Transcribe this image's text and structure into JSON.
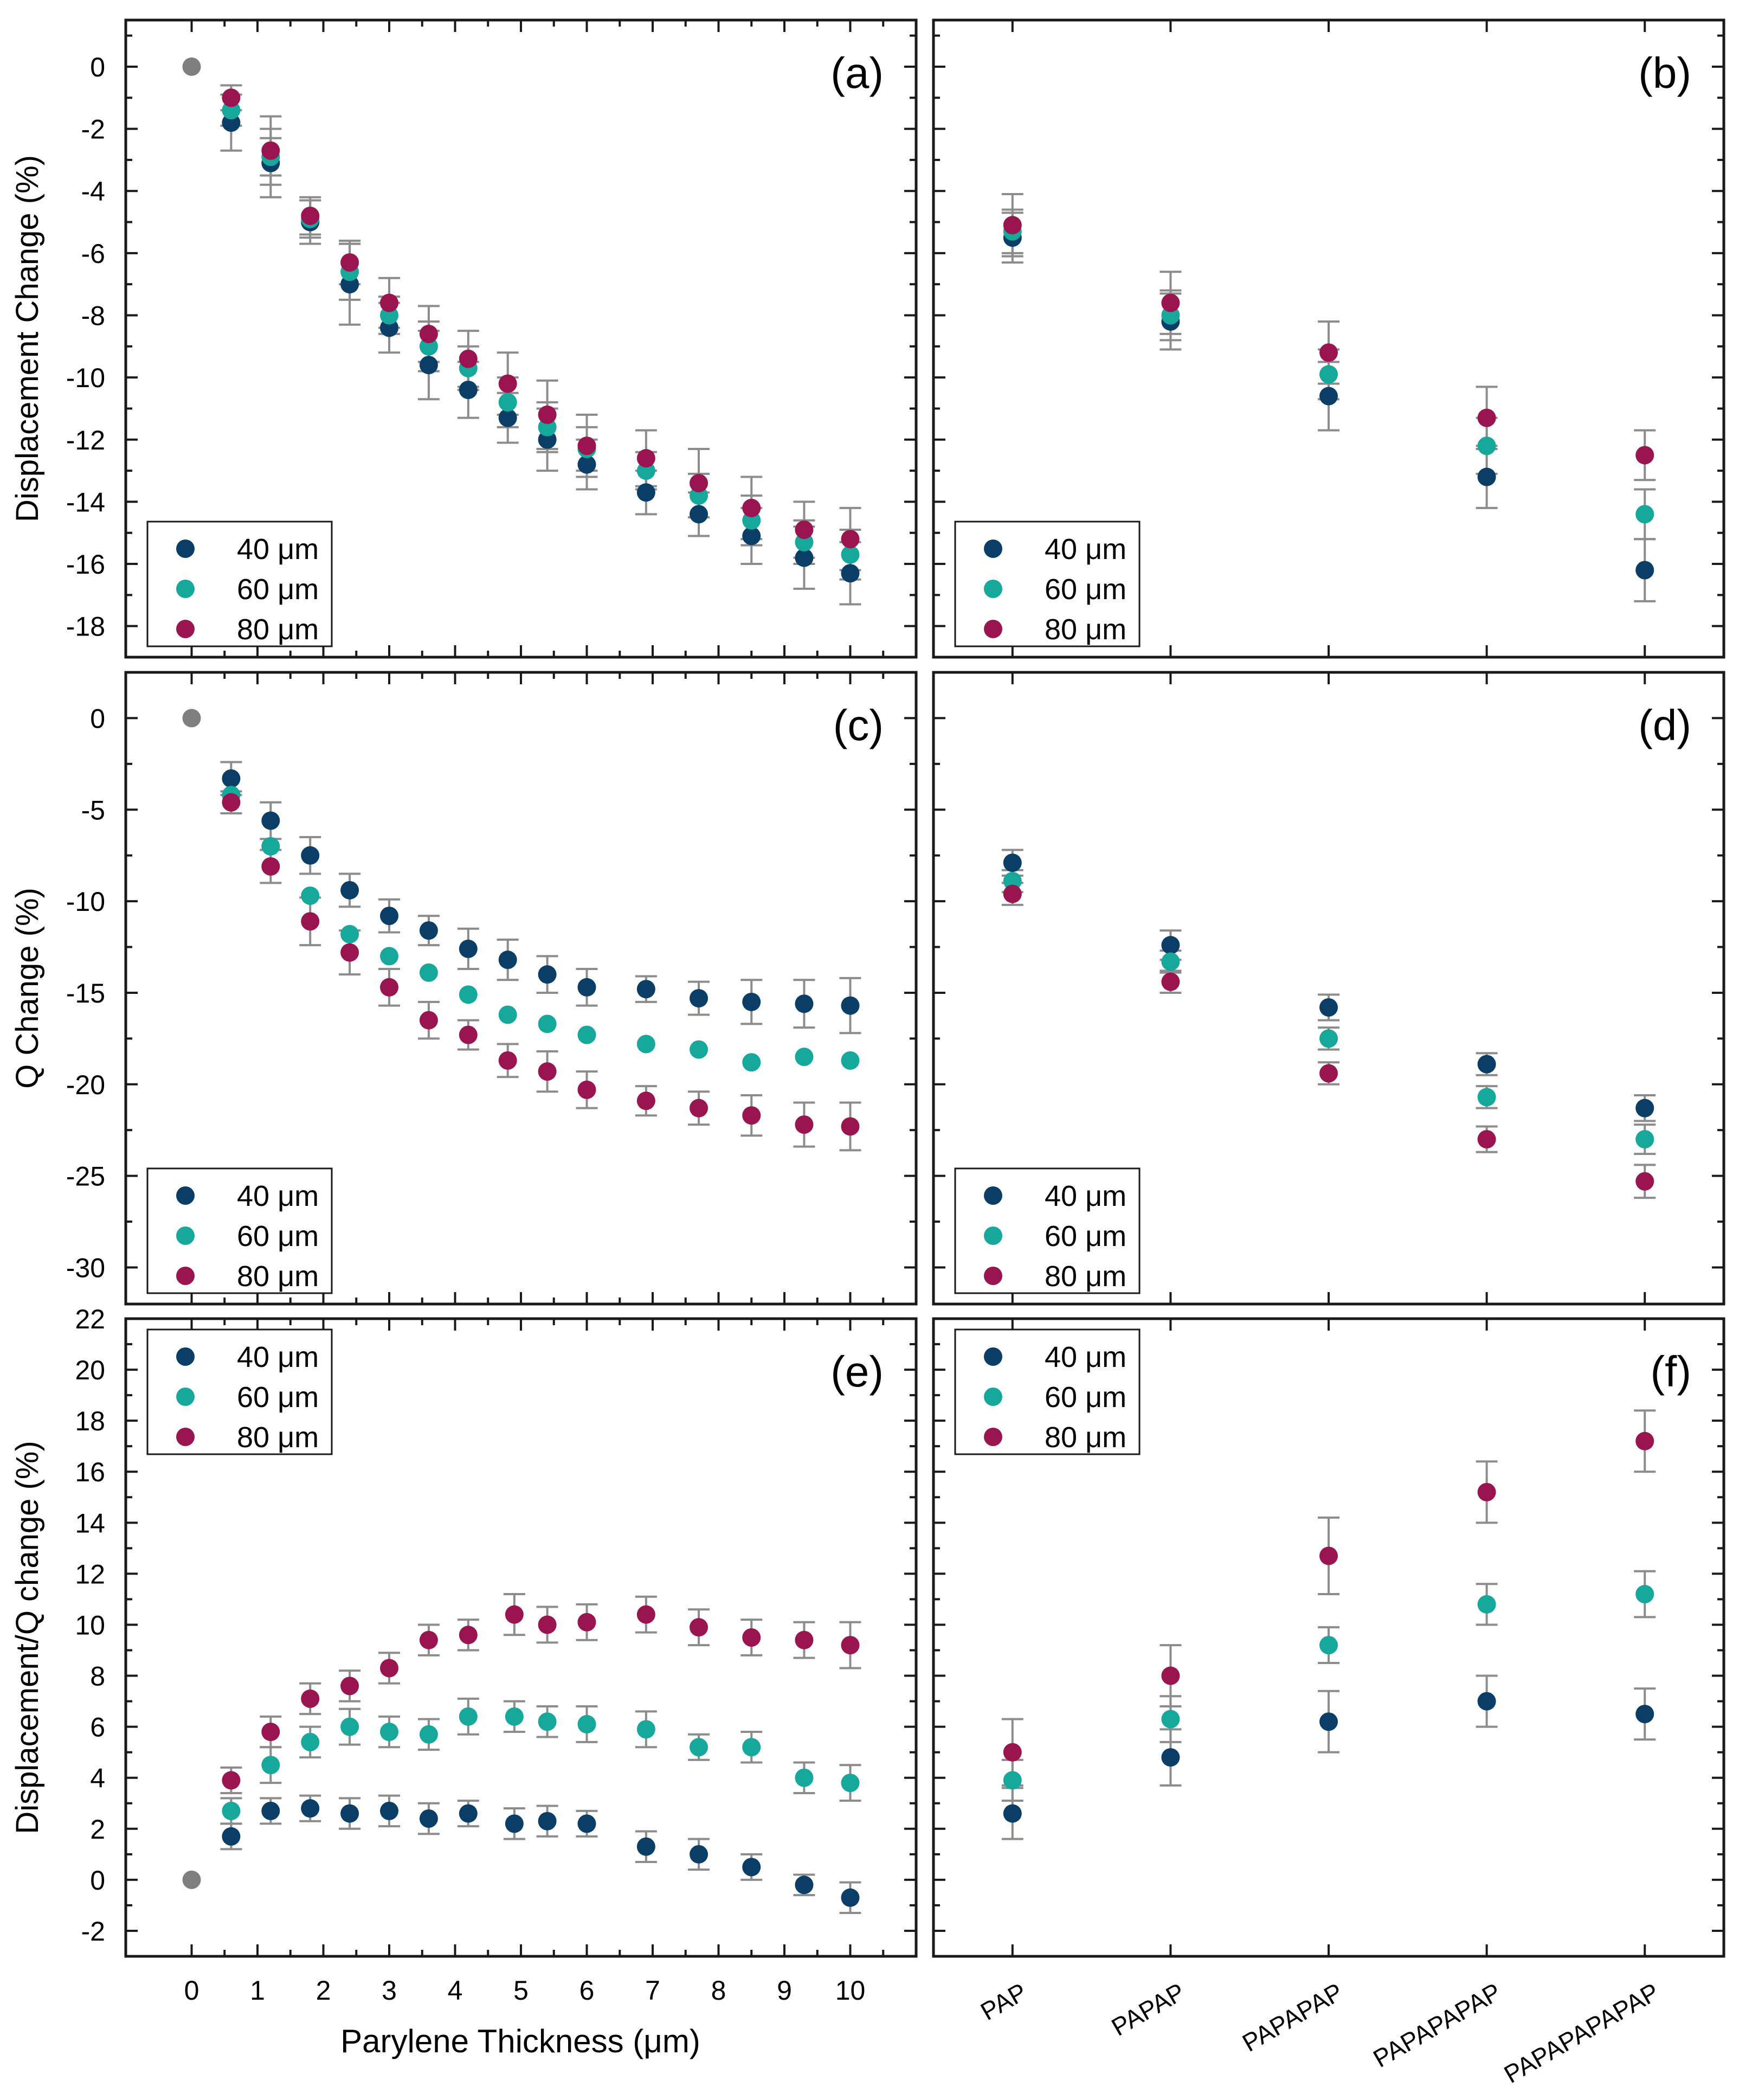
{
  "figure": {
    "shared_xlabel": "Parylene Thickness (μm)",
    "legend_labels": [
      "40 μm",
      "60 μm",
      "80 μm"
    ],
    "colors": {
      "s40": "#0b3e66",
      "s60": "#15a89b",
      "s80": "#9a1450",
      "origin": "#7f7f7f",
      "errorbar": "#8c8c8c"
    }
  },
  "chart_data": [
    {
      "id": "a",
      "panel_label": "(a)",
      "type": "scatter",
      "ylabel": "Displacement Change (%)",
      "xlim": [
        -1,
        11
      ],
      "ylim": [
        -19,
        1.5
      ],
      "xticks": [
        0,
        1,
        2,
        3,
        4,
        5,
        6,
        7,
        8,
        9,
        10
      ],
      "xtick_labels_shown": false,
      "yticks": [
        0,
        -2,
        -4,
        -6,
        -8,
        -10,
        -12,
        -14,
        -16,
        -18
      ],
      "legend_position": "bottom-left",
      "origin": {
        "x": 0,
        "y": 0
      },
      "x": [
        0.6,
        1.2,
        1.8,
        2.4,
        3.0,
        3.6,
        4.2,
        4.8,
        5.4,
        6.0,
        6.9,
        7.7,
        8.5,
        9.3,
        10.0
      ],
      "series": [
        {
          "name": "40 μm",
          "color": "#0b3e66",
          "y": [
            -1.8,
            -3.1,
            -5.0,
            -7.0,
            -8.4,
            -9.6,
            -10.4,
            -11.3,
            -12.0,
            -12.8,
            -13.7,
            -14.4,
            -15.1,
            -15.8,
            -16.3
          ],
          "err": [
            0.9,
            1.1,
            0.7,
            1.3,
            0.8,
            1.1,
            0.9,
            0.8,
            1.0,
            0.8,
            0.7,
            0.7,
            0.9,
            1.0,
            1.0
          ]
        },
        {
          "name": "60 μm",
          "color": "#15a89b",
          "y": [
            -1.4,
            -2.9,
            -4.9,
            -6.6,
            -8.0,
            -9.0,
            -9.7,
            -10.8,
            -11.6,
            -12.3,
            -13.0,
            -13.8,
            -14.6,
            -15.3,
            -15.7
          ],
          "err": [
            0.5,
            0.6,
            0.6,
            0.9,
            0.6,
            0.8,
            0.7,
            0.8,
            0.8,
            0.7,
            0.6,
            0.7,
            0.8,
            0.7,
            0.8
          ]
        },
        {
          "name": "80 μm",
          "color": "#9a1450",
          "y": [
            -1.0,
            -2.7,
            -4.8,
            -6.3,
            -7.6,
            -8.6,
            -9.4,
            -10.2,
            -11.2,
            -12.2,
            -12.6,
            -13.4,
            -14.2,
            -14.9,
            -15.2
          ],
          "err": [
            0.4,
            1.1,
            0.6,
            0.7,
            0.8,
            0.9,
            0.9,
            1.0,
            1.1,
            1.0,
            0.9,
            1.1,
            1.0,
            0.9,
            1.0
          ]
        }
      ]
    },
    {
      "id": "b",
      "panel_label": "(b)",
      "type": "scatter",
      "xlim": [
        -0.5,
        4.5
      ],
      "ylim": [
        -19,
        1.5
      ],
      "categories": [
        "PAP",
        "PAPAP",
        "PAPAPAP",
        "PAPAPAPAP",
        "PAPAPAPAPAP"
      ],
      "xtick_labels_shown": false,
      "yticks": [
        0,
        -2,
        -4,
        -6,
        -8,
        -10,
        -12,
        -14,
        -16,
        -18
      ],
      "legend_position": "bottom-left",
      "series": [
        {
          "name": "40 μm",
          "color": "#0b3e66",
          "y": [
            -5.5,
            -8.2,
            -10.6,
            -13.2,
            -16.2
          ],
          "err": [
            0.8,
            0.9,
            1.1,
            1.0,
            1.0
          ]
        },
        {
          "name": "60 μm",
          "color": "#15a89b",
          "y": [
            -5.3,
            -8.0,
            -9.9,
            -12.2,
            -14.4
          ],
          "err": [
            0.7,
            0.8,
            0.8,
            0.9,
            0.8
          ]
        },
        {
          "name": "80 μm",
          "color": "#9a1450",
          "y": [
            -5.1,
            -7.6,
            -9.2,
            -11.3,
            -12.5
          ],
          "err": [
            1.0,
            1.0,
            1.0,
            1.0,
            0.8
          ]
        }
      ]
    },
    {
      "id": "c",
      "panel_label": "(c)",
      "type": "scatter",
      "ylabel": "Q Change (%)",
      "xlim": [
        -1,
        11
      ],
      "ylim": [
        -32,
        2.5
      ],
      "xticks": [
        0,
        1,
        2,
        3,
        4,
        5,
        6,
        7,
        8,
        9,
        10
      ],
      "xtick_labels_shown": false,
      "yticks": [
        0,
        -5,
        -10,
        -15,
        -20,
        -25,
        -30
      ],
      "legend_position": "bottom-left",
      "origin": {
        "x": 0,
        "y": 0
      },
      "x": [
        0.6,
        1.2,
        1.8,
        2.4,
        3.0,
        3.6,
        4.2,
        4.8,
        5.4,
        6.0,
        6.9,
        7.7,
        8.5,
        9.3,
        10.0
      ],
      "series": [
        {
          "name": "40 μm",
          "color": "#0b3e66",
          "y": [
            -3.3,
            -5.6,
            -7.5,
            -9.4,
            -10.8,
            -11.6,
            -12.6,
            -13.2,
            -14.0,
            -14.7,
            -14.8,
            -15.3,
            -15.5,
            -15.6,
            -15.7
          ],
          "err": [
            0.9,
            1.0,
            1.0,
            0.9,
            0.9,
            0.8,
            1.1,
            1.1,
            1.0,
            1.0,
            0.7,
            0.9,
            1.2,
            1.3,
            1.5
          ]
        },
        {
          "name": "60 μm",
          "color": "#15a89b",
          "y": [
            -4.2,
            -7.0,
            -9.7,
            -11.8,
            -13.0,
            -13.9,
            -15.1,
            -16.2,
            -16.7,
            -17.3,
            -17.8,
            -18.1,
            -18.8,
            -18.5,
            -18.7
          ]
        },
        {
          "name": "80 μm",
          "color": "#9a1450",
          "y": [
            -4.6,
            -8.1,
            -11.1,
            -12.8,
            -14.7,
            -16.5,
            -17.3,
            -18.7,
            -19.3,
            -20.3,
            -20.9,
            -21.3,
            -21.7,
            -22.2,
            -22.3
          ],
          "err": [
            0.6,
            0.9,
            1.3,
            1.2,
            1.0,
            1.0,
            0.8,
            0.9,
            1.1,
            1.0,
            0.8,
            0.9,
            1.1,
            1.2,
            1.3
          ]
        }
      ]
    },
    {
      "id": "d",
      "panel_label": "(d)",
      "type": "scatter",
      "xlim": [
        -0.5,
        4.5
      ],
      "ylim": [
        -32,
        2.5
      ],
      "categories": [
        "PAP",
        "PAPAP",
        "PAPAPAP",
        "PAPAPAPAP",
        "PAPAPAPAPAP"
      ],
      "xtick_labels_shown": false,
      "yticks": [
        0,
        -5,
        -10,
        -15,
        -20,
        -25,
        -30
      ],
      "legend_position": "bottom-left",
      "series": [
        {
          "name": "40 μm",
          "color": "#0b3e66",
          "y": [
            -7.9,
            -12.4,
            -15.8,
            -18.9,
            -21.3
          ],
          "err": [
            0.7,
            0.8,
            0.7,
            0.6,
            0.7
          ]
        },
        {
          "name": "60 μm",
          "color": "#15a89b",
          "y": [
            -8.9,
            -13.3,
            -17.5,
            -20.7,
            -23.0
          ],
          "err": [
            0.6,
            0.6,
            0.6,
            0.6,
            0.8
          ]
        },
        {
          "name": "80 μm",
          "color": "#9a1450",
          "y": [
            -9.6,
            -14.4,
            -19.4,
            -23.0,
            -25.3
          ],
          "err": [
            0.6,
            0.6,
            0.6,
            0.7,
            0.9
          ]
        }
      ]
    },
    {
      "id": "e",
      "panel_label": "(e)",
      "type": "scatter",
      "ylabel": "Displacement/Q change (%)",
      "xlabel": "Parylene Thickness (μm)",
      "xlim": [
        -1,
        11
      ],
      "ylim": [
        -3,
        22
      ],
      "xticks": [
        0,
        1,
        2,
        3,
        4,
        5,
        6,
        7,
        8,
        9,
        10
      ],
      "yticks": [
        -2,
        0,
        2,
        4,
        6,
        8,
        10,
        12,
        14,
        16,
        18,
        20,
        22
      ],
      "legend_position": "top-left",
      "origin": {
        "x": 0,
        "y": 0
      },
      "x": [
        0.6,
        1.2,
        1.8,
        2.4,
        3.0,
        3.6,
        4.2,
        4.9,
        5.4,
        6.0,
        6.9,
        7.7,
        8.5,
        9.3,
        10.0
      ],
      "series": [
        {
          "name": "40 μm",
          "color": "#0b3e66",
          "y": [
            1.7,
            2.7,
            2.8,
            2.6,
            2.7,
            2.4,
            2.6,
            2.2,
            2.3,
            2.2,
            1.3,
            1.0,
            0.5,
            -0.2,
            -0.7
          ],
          "err": [
            0.5,
            0.5,
            0.5,
            0.6,
            0.6,
            0.6,
            0.5,
            0.6,
            0.6,
            0.5,
            0.6,
            0.6,
            0.5,
            0.4,
            0.6
          ]
        },
        {
          "name": "60 μm",
          "color": "#15a89b",
          "y": [
            2.7,
            4.5,
            5.4,
            6.0,
            5.8,
            5.7,
            6.4,
            6.4,
            6.2,
            6.1,
            5.9,
            5.2,
            5.2,
            4.0,
            3.8
          ],
          "err": [
            0.5,
            0.7,
            0.6,
            0.7,
            0.6,
            0.6,
            0.7,
            0.6,
            0.6,
            0.7,
            0.7,
            0.5,
            0.6,
            0.6,
            0.7
          ]
        },
        {
          "name": "80 μm",
          "color": "#9a1450",
          "y": [
            3.9,
            5.8,
            7.1,
            7.6,
            8.3,
            9.4,
            9.6,
            10.4,
            10.0,
            10.1,
            10.4,
            9.9,
            9.5,
            9.4,
            9.2
          ],
          "err": [
            0.5,
            0.6,
            0.6,
            0.6,
            0.6,
            0.6,
            0.6,
            0.8,
            0.7,
            0.7,
            0.7,
            0.7,
            0.7,
            0.7,
            0.9
          ]
        }
      ]
    },
    {
      "id": "f",
      "panel_label": "(f)",
      "type": "scatter",
      "xlim": [
        -0.5,
        4.5
      ],
      "ylim": [
        -3,
        22
      ],
      "categories": [
        "PAP",
        "PAPAP",
        "PAPAPAP",
        "PAPAPAPAP",
        "PAPAPAPAPAP"
      ],
      "yticks": [
        -2,
        0,
        2,
        4,
        6,
        8,
        10,
        12,
        14,
        16,
        18,
        20,
        22
      ],
      "legend_position": "top-left",
      "series": [
        {
          "name": "40 μm",
          "color": "#0b3e66",
          "y": [
            2.6,
            4.8,
            6.2,
            7.0,
            6.5
          ],
          "err": [
            1.0,
            1.1,
            1.2,
            1.0,
            1.0
          ]
        },
        {
          "name": "60 μm",
          "color": "#15a89b",
          "y": [
            3.9,
            6.3,
            9.2,
            10.8,
            11.2
          ],
          "err": [
            0.8,
            0.9,
            0.7,
            0.8,
            0.9
          ]
        },
        {
          "name": "80 μm",
          "color": "#9a1450",
          "y": [
            5.0,
            8.0,
            12.7,
            15.2,
            17.2
          ],
          "err": [
            1.3,
            1.2,
            1.5,
            1.2,
            1.2
          ]
        }
      ]
    }
  ]
}
